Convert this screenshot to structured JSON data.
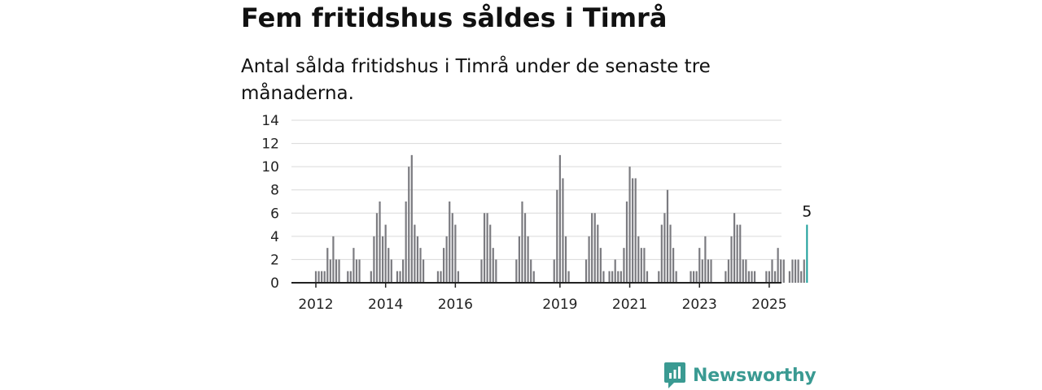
{
  "title": "Fem fritidshus såldes i Timrå",
  "subtitle": "Antal sålda fritidshus i Timrå under de senaste tre månaderna.",
  "brand": {
    "name": "Newsworthy",
    "color": "#3a9a92"
  },
  "colors": {
    "bar": "#7b7b80",
    "highlight": "#1a9e99",
    "grid": "#d9d9d9",
    "axis": "#222222"
  },
  "chart_data": {
    "type": "bar",
    "x_start": "2012-01",
    "frequency": "monthly",
    "values": [
      1,
      1,
      1,
      1,
      3,
      2,
      4,
      2,
      2,
      0,
      0,
      1,
      1,
      3,
      2,
      2,
      0,
      0,
      0,
      1,
      4,
      6,
      7,
      4,
      5,
      3,
      2,
      0,
      1,
      1,
      2,
      7,
      10,
      11,
      5,
      4,
      3,
      2,
      0,
      0,
      0,
      0,
      1,
      1,
      3,
      4,
      7,
      6,
      5,
      1,
      0,
      0,
      0,
      0,
      0,
      0,
      0,
      2,
      6,
      6,
      5,
      3,
      2,
      0,
      0,
      0,
      0,
      0,
      0,
      2,
      4,
      7,
      6,
      4,
      2,
      1,
      0,
      0,
      0,
      0,
      0,
      0,
      2,
      8,
      11,
      9,
      4,
      1,
      0,
      0,
      0,
      0,
      0,
      2,
      4,
      6,
      6,
      5,
      3,
      1,
      0,
      1,
      1,
      2,
      1,
      1,
      3,
      7,
      10,
      9,
      9,
      4,
      3,
      3,
      1,
      0,
      0,
      0,
      1,
      5,
      6,
      8,
      5,
      3,
      1,
      0,
      0,
      0,
      0,
      1,
      1,
      1,
      3,
      2,
      4,
      2,
      2,
      0,
      0,
      0,
      0,
      1,
      2,
      4,
      6,
      5,
      5,
      2,
      2,
      1,
      1,
      1,
      0,
      0,
      0,
      1,
      1,
      2,
      1,
      3,
      2,
      2,
      0,
      1,
      2,
      2,
      2,
      1,
      2,
      5
    ],
    "xticks": [
      "2012",
      "2014",
      "2016",
      "2019",
      "2021",
      "2023",
      "2025"
    ],
    "xtick_positions": [
      0,
      24,
      48,
      84,
      108,
      132,
      156
    ],
    "yticks": [
      0,
      2,
      4,
      6,
      8,
      10,
      12,
      14
    ],
    "ylim": [
      0,
      14
    ],
    "highlight_last": true,
    "annotation": "5",
    "grid": true,
    "xlabel": "",
    "ylabel": ""
  }
}
